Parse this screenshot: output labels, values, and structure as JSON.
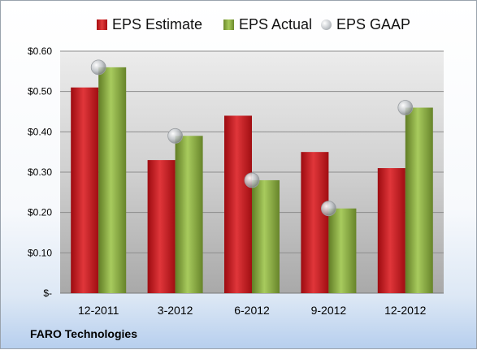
{
  "company": "FARO Technologies",
  "colors": {
    "estimate": "#c8161c",
    "actual": "#8fb246",
    "gaap": "#b8bcc0"
  },
  "chart_data": {
    "type": "bar",
    "categories": [
      "12-2011",
      "3-2012",
      "6-2012",
      "9-2012",
      "12-2012"
    ],
    "series": [
      {
        "name": "EPS Estimate",
        "kind": "bar",
        "values": [
          0.51,
          0.33,
          0.44,
          0.35,
          0.31
        ]
      },
      {
        "name": "EPS Actual",
        "kind": "bar",
        "values": [
          0.56,
          0.39,
          0.28,
          0.21,
          0.46
        ]
      },
      {
        "name": "EPS GAAP",
        "kind": "marker",
        "values": [
          0.56,
          0.39,
          0.28,
          0.21,
          0.46
        ]
      }
    ],
    "ylim": [
      0,
      0.6
    ],
    "yticks": [
      0,
      0.1,
      0.2,
      0.3,
      0.4,
      0.5,
      0.6
    ],
    "ytick_labels": [
      "$-",
      "$0.10",
      "$0.20",
      "$0.30",
      "$0.40",
      "$0.50",
      "$0.60"
    ],
    "grid": true,
    "legend": "top"
  }
}
